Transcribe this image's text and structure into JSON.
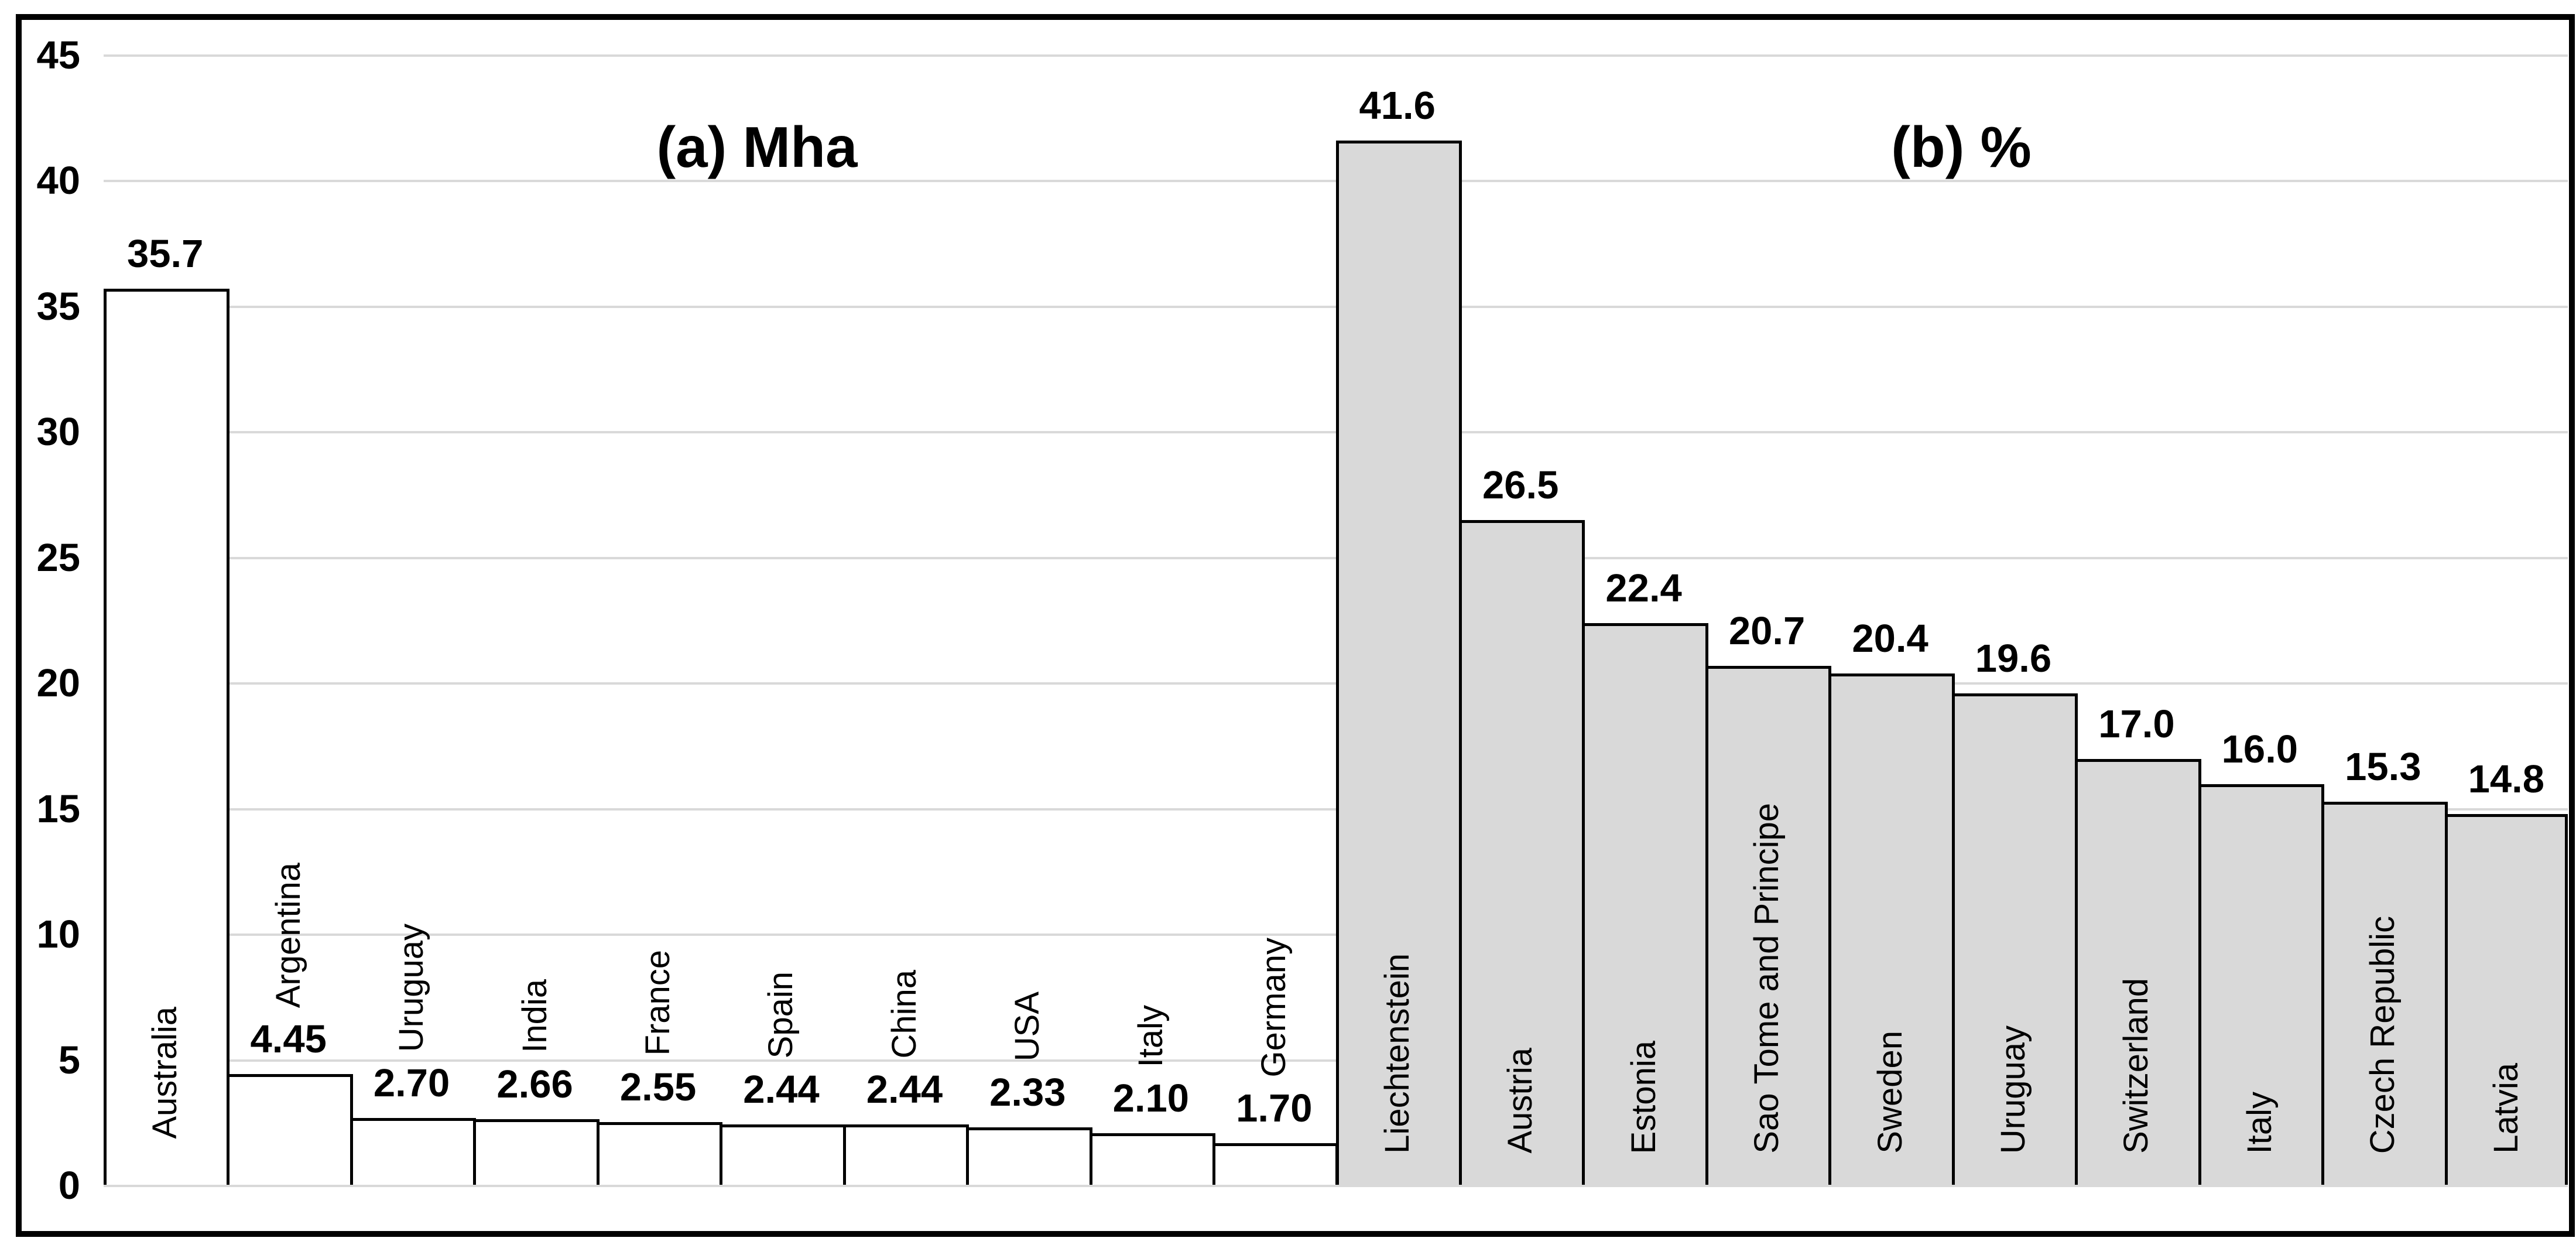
{
  "colors": {
    "bar_border": "#000000",
    "grid": "#d9d9d9",
    "frame": "#000000",
    "text": "#000000"
  },
  "chart_data": {
    "type": "bar",
    "grid": true,
    "ylim": [
      0,
      45
    ],
    "y_tick_step": 5,
    "y_tick_labels": [
      "0",
      "5",
      "10",
      "15",
      "20",
      "25",
      "30",
      "35",
      "40",
      "45"
    ],
    "legend": "none",
    "panels": [
      {
        "id": "a",
        "title": "(a) Mha",
        "unit": "Mha",
        "bar_fill": "#ffffff",
        "categories": [
          "Australia",
          "Argentina",
          "Uruguay",
          "India",
          "France",
          "Spain",
          "China",
          "USA",
          "Italy",
          "Germany"
        ],
        "values": [
          35.7,
          4.45,
          2.7,
          2.66,
          2.55,
          2.44,
          2.44,
          2.33,
          2.1,
          1.7
        ],
        "value_labels": [
          "35.7",
          "4.45",
          "2.70",
          "2.66",
          "2.55",
          "2.44",
          "2.44",
          "2.33",
          "2.10",
          "1.70"
        ]
      },
      {
        "id": "b",
        "title": "(b) %",
        "unit": "%",
        "bar_fill": "#d9d9d9",
        "categories": [
          "Liechtenstein",
          "Austria",
          "Estonia",
          "Sao Tome and Principe",
          "Sweden",
          "Uruguay",
          "Switzerland",
          "Italy",
          "Czech Republic",
          "Latvia"
        ],
        "values": [
          41.6,
          26.5,
          22.4,
          20.7,
          20.4,
          19.6,
          17.0,
          16.0,
          15.3,
          14.8
        ],
        "value_labels": [
          "41.6",
          "26.5",
          "22.4",
          "20.7",
          "20.4",
          "19.6",
          "17.0",
          "16.0",
          "15.3",
          "14.8"
        ]
      }
    ]
  }
}
